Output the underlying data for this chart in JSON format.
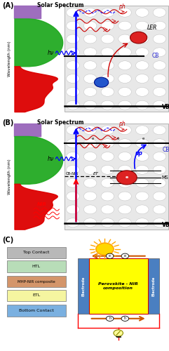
{
  "fig_width": 2.41,
  "fig_height": 5.0,
  "dpi": 100,
  "panel_A_label": "(A)",
  "panel_B_label": "(B)",
  "panel_C_label": "(C)",
  "solar_spectrum_title": "Solar Spectrum",
  "wavelength_label": "Wavelength (nm)",
  "hv_label": "hν",
  "ph_label": "ph",
  "LER_label": "LER",
  "CB_label": "CB",
  "VB_label": "VB",
  "CB_NIR_label": "CB-NIR",
  "ET_label": "ET",
  "up_label": "up",
  "MS_label": "MS",
  "NIR_label": "NIR",
  "layers_left": [
    "Top Contact",
    "HTL",
    "MHP-NIR composite",
    "ETL",
    "Bottom Contact"
  ],
  "layer_colors": [
    "#b8b8b8",
    "#b8ddb8",
    "#d4956a",
    "#f5f5a0",
    "#7ab0e0"
  ],
  "layer_text_colors": [
    "black",
    "black",
    "black",
    "black",
    "black"
  ],
  "perovskite_label": "Perovskite - NIR\ncomposition",
  "electrode_label": "Electrode",
  "bg_color": "#ffffff"
}
